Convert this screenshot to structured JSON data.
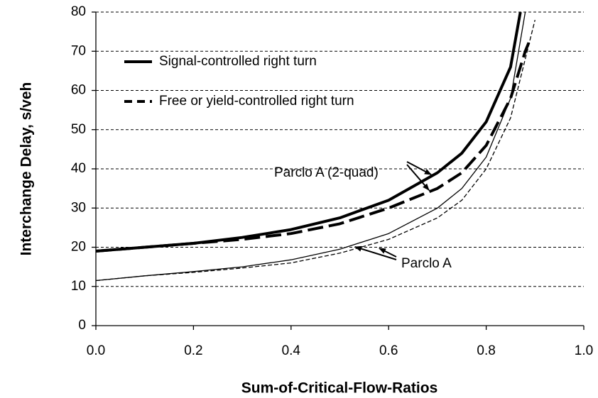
{
  "chart_data": {
    "type": "line",
    "x_label": "Sum-of-Critical-Flow-Ratios",
    "y_label": "Interchange Delay, s/veh",
    "xlim": [
      0,
      1
    ],
    "xticks": [
      {
        "value": 0,
        "label": "0.0"
      },
      0.2,
      0.4,
      0.6,
      0.8,
      {
        "value": 1,
        "label": "1.0"
      }
    ],
    "ylim": [
      0,
      80
    ],
    "yticks": [
      0,
      10,
      20,
      30,
      40,
      50,
      60,
      70,
      80
    ],
    "grid": true,
    "color": "#000000",
    "legend": [
      {
        "name": "Signal-controlled right turn",
        "dash": false
      },
      {
        "name": "Free or yield-controlled right turn",
        "dash": true
      }
    ],
    "series": [
      {
        "label": "Parclo A (2-quad)",
        "line_width": 4,
        "curves": [
          {
            "x": [
              0,
              0.1,
              0.2,
              0.3,
              0.4,
              0.5,
              0.6,
              0.7,
              0.75,
              0.8,
              0.85,
              0.87
            ],
            "values": [
              19,
              20,
              21,
              22.5,
              24.5,
              27.5,
              32,
              39,
              44,
              52,
              66,
              80
            ]
          },
          {
            "x": [
              0,
              0.1,
              0.2,
              0.3,
              0.4,
              0.5,
              0.6,
              0.7,
              0.75,
              0.8,
              0.85,
              0.88,
              0.89
            ],
            "values": [
              19,
              20,
              21,
              22,
              23.5,
              26,
              30,
              35,
              39,
              46,
              58,
              70,
              73
            ]
          }
        ]
      },
      {
        "label": "Parclo A",
        "line_width": 1.3,
        "curves": [
          {
            "x": [
              0,
              0.1,
              0.2,
              0.3,
              0.4,
              0.5,
              0.6,
              0.7,
              0.75,
              0.8,
              0.85,
              0.88
            ],
            "values": [
              11.5,
              12.7,
              13.8,
              15,
              16.8,
              19.5,
              23.5,
              30,
              35,
              43,
              58,
              80
            ]
          },
          {
            "x": [
              0,
              0.1,
              0.2,
              0.3,
              0.4,
              0.5,
              0.6,
              0.7,
              0.75,
              0.8,
              0.85,
              0.9
            ],
            "values": [
              11.5,
              12.7,
              13.6,
              14.7,
              16,
              18.5,
              22,
              27.5,
              32,
              40,
              53,
              78
            ]
          }
        ]
      }
    ]
  }
}
